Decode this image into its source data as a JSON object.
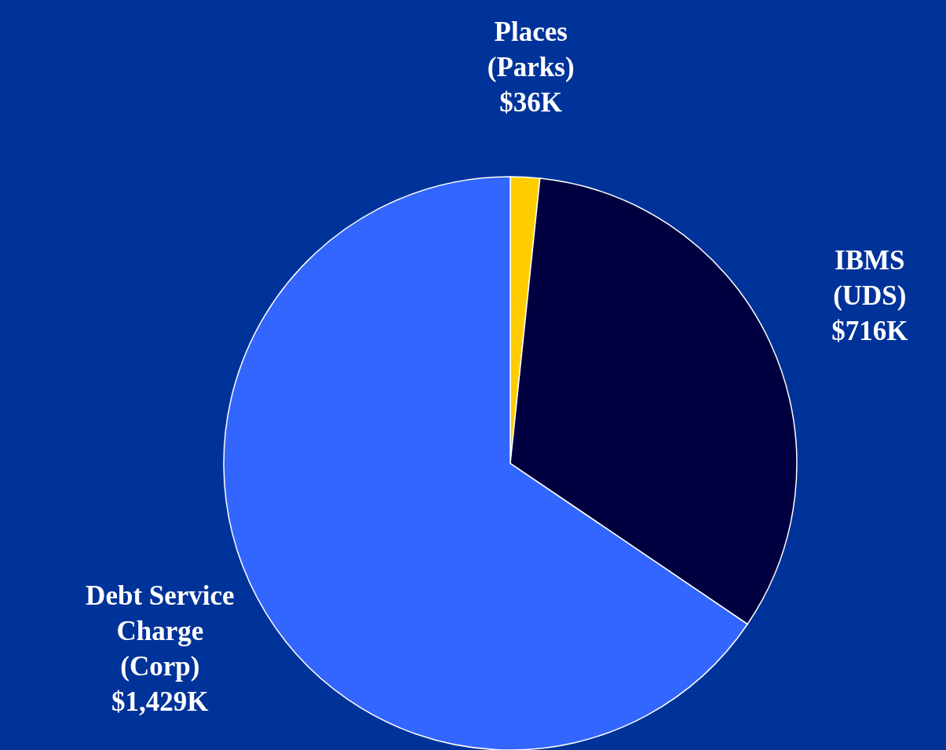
{
  "chart_data": {
    "type": "pie",
    "categories": [
      "Places (Parks)",
      "IBMS (UDS)",
      "Debt Service Charge (Corp)"
    ],
    "values": [
      36,
      716,
      1429
    ],
    "value_labels": [
      "$36K",
      "$716K",
      "$1,429K"
    ],
    "colors": [
      "#ffcc00",
      "#000040",
      "#3366ff"
    ]
  }
}
